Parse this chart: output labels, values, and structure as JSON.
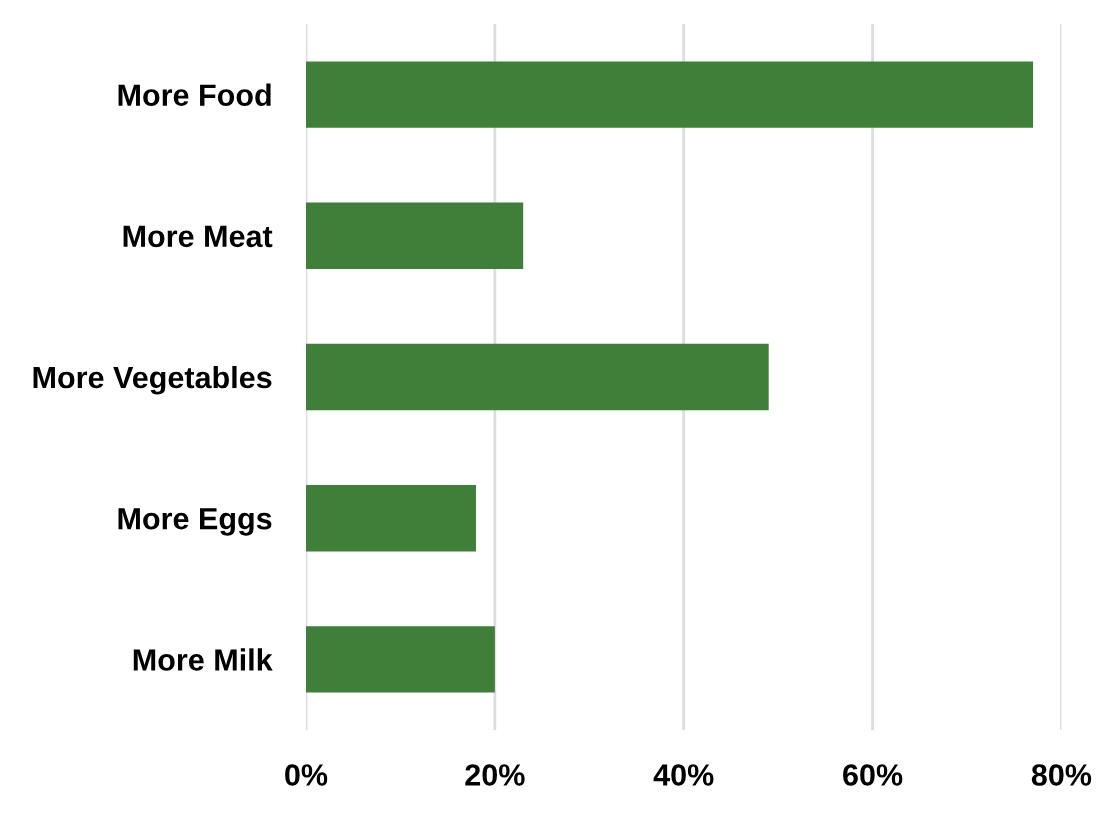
{
  "chart_data": {
    "type": "bar",
    "orientation": "horizontal",
    "categories": [
      "More Food",
      "More Meat",
      "More Vegetables",
      "More Eggs",
      "More Milk"
    ],
    "values": [
      77,
      23,
      49,
      18,
      20
    ],
    "color": "#3f7f3a",
    "xlim": [
      0,
      80
    ],
    "xticks": [
      {
        "value": 0,
        "label": "0%"
      },
      {
        "value": 20,
        "label": "20%"
      },
      {
        "value": 40,
        "label": "40%"
      },
      {
        "value": 60,
        "label": "60%"
      },
      {
        "value": 80,
        "label": "80%"
      }
    ],
    "grid": "x"
  }
}
